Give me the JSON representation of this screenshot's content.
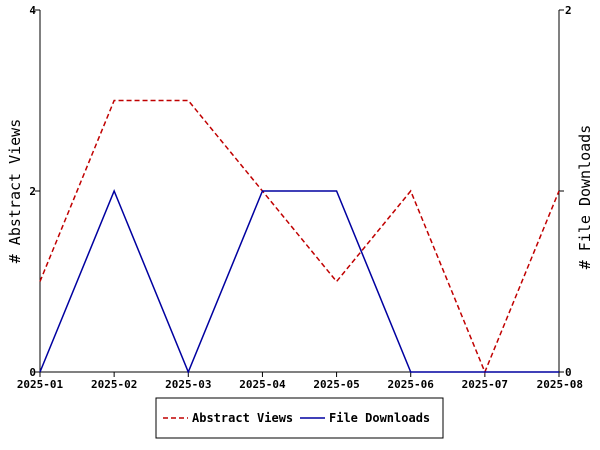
{
  "chart_data": {
    "type": "line",
    "categories": [
      "2025-01",
      "2025-02",
      "2025-03",
      "2025-04",
      "2025-05",
      "2025-06",
      "2025-07",
      "2025-08"
    ],
    "series": [
      {
        "name": "Abstract Views",
        "axis": "left",
        "values": [
          1,
          3,
          3,
          2,
          1,
          2,
          0,
          2
        ],
        "color": "#c00000",
        "dash": "dashed"
      },
      {
        "name": "File Downloads",
        "axis": "right",
        "values": [
          0,
          1,
          0,
          1,
          1,
          0,
          0,
          0
        ],
        "color": "#0000a0",
        "dash": "solid"
      }
    ],
    "ylabel": "# Abstract Views",
    "y2label": "# File Downloads",
    "ylim": [
      0,
      4
    ],
    "y2lim": [
      0,
      2
    ],
    "yticks": [
      "0",
      "2",
      "4"
    ],
    "y2ticks": [
      "0",
      "1",
      "2"
    ],
    "grid": false,
    "legend_position": "bottom-center"
  }
}
